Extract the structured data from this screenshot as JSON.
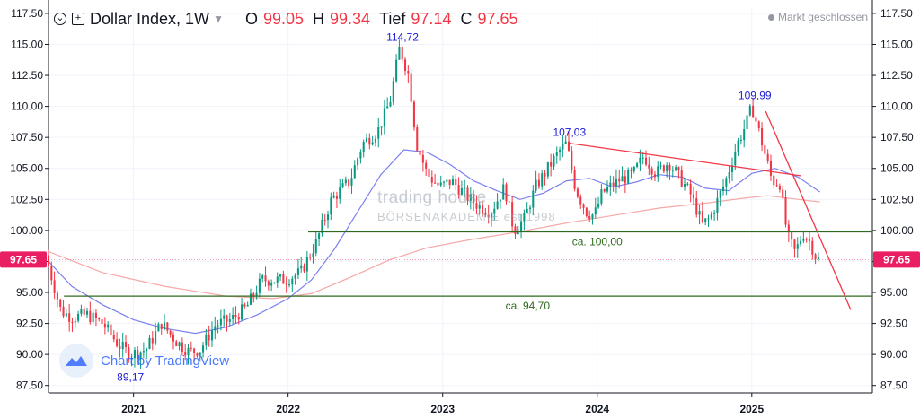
{
  "header": {
    "title": "Dollar Index, 1W",
    "open_key": "O",
    "open": "99.05",
    "high_key": "H",
    "high": "99.34",
    "low_key": "Tief",
    "low": "97.14",
    "close_key": "C",
    "close": "97.65",
    "status": "Markt geschlossen"
  },
  "watermark": {
    "text": "Chart by TradingView",
    "brand_line1": "trading house",
    "brand_line2": "BÖRSENAKADEMIE est 1998"
  },
  "chart_data": {
    "type": "candlestick",
    "ylim": [
      86.9,
      118.0
    ],
    "yticks": [
      87.5,
      90.0,
      92.5,
      95.0,
      97.5,
      100.0,
      102.5,
      105.0,
      107.5,
      110.0,
      112.5,
      115.0,
      117.5
    ],
    "ytick_labels": [
      "87.50",
      "90.00",
      "92.50",
      "95.00",
      "97.50",
      "100.00",
      "102.50",
      "105.00",
      "107.50",
      "110.00",
      "112.50",
      "115.00",
      "117.50"
    ],
    "xlim": [
      2020.45,
      2025.78
    ],
    "xticks": [
      2021,
      2022,
      2023,
      2024,
      2025
    ],
    "xtick_labels": [
      "2021",
      "2022",
      "2023",
      "2024",
      "2025"
    ],
    "last_price": 97.65,
    "last_price_label": "97.65",
    "colors": {
      "up": "#089981",
      "down": "#f23645",
      "ma_short": "#7b7ff0",
      "ma_long": "#f7a8a8",
      "horizontal": "#2e6b1e",
      "trendline": "#f23645",
      "annotation": "#1a1ad6",
      "price_tag": "#e91e63"
    },
    "price_path": [
      [
        2020.45,
        98.0
      ],
      [
        2020.55,
        93.5
      ],
      [
        2020.62,
        93.0
      ],
      [
        2020.72,
        93.2
      ],
      [
        2020.82,
        92.5
      ],
      [
        2020.92,
        90.8
      ],
      [
        2021.0,
        90.0
      ],
      [
        2021.1,
        90.4
      ],
      [
        2021.2,
        92.5
      ],
      [
        2021.3,
        91.0
      ],
      [
        2021.38,
        90.2
      ],
      [
        2021.45,
        90.4
      ],
      [
        2021.55,
        92.4
      ],
      [
        2021.65,
        92.8
      ],
      [
        2021.75,
        93.8
      ],
      [
        2021.85,
        96.0
      ],
      [
        2022.0,
        96.0
      ],
      [
        2022.1,
        96.6
      ],
      [
        2022.2,
        99.0
      ],
      [
        2022.3,
        102.5
      ],
      [
        2022.42,
        104.0
      ],
      [
        2022.5,
        107.0
      ],
      [
        2022.6,
        108.0
      ],
      [
        2022.68,
        110.5
      ],
      [
        2022.74,
        114.72
      ],
      [
        2022.8,
        112.5
      ],
      [
        2022.85,
        107.0
      ],
      [
        2022.92,
        104.5
      ],
      [
        2023.0,
        103.5
      ],
      [
        2023.08,
        104.0
      ],
      [
        2023.17,
        102.8
      ],
      [
        2023.25,
        102.0
      ],
      [
        2023.33,
        101.5
      ],
      [
        2023.42,
        103.5
      ],
      [
        2023.48,
        100.0
      ],
      [
        2023.55,
        101.0
      ],
      [
        2023.62,
        103.5
      ],
      [
        2023.7,
        105.0
      ],
      [
        2023.78,
        106.5
      ],
      [
        2023.82,
        107.03
      ],
      [
        2023.88,
        103.3
      ],
      [
        2023.95,
        101.5
      ],
      [
        2024.0,
        101.2
      ],
      [
        2024.05,
        103.0
      ],
      [
        2024.15,
        104.0
      ],
      [
        2024.25,
        104.5
      ],
      [
        2024.32,
        106.0
      ],
      [
        2024.4,
        104.6
      ],
      [
        2024.48,
        105.5
      ],
      [
        2024.55,
        104.3
      ],
      [
        2024.62,
        103.0
      ],
      [
        2024.7,
        100.5
      ],
      [
        2024.75,
        101.0
      ],
      [
        2024.85,
        104.0
      ],
      [
        2024.92,
        106.8
      ],
      [
        2024.98,
        108.5
      ],
      [
        2025.02,
        109.99
      ],
      [
        2025.08,
        107.3
      ],
      [
        2025.15,
        104.0
      ],
      [
        2025.2,
        103.8
      ],
      [
        2025.25,
        99.5
      ],
      [
        2025.3,
        98.2
      ],
      [
        2025.35,
        99.8
      ],
      [
        2025.4,
        99.0
      ],
      [
        2025.44,
        97.65
      ]
    ],
    "ma_short": [
      [
        2020.45,
        97.5
      ],
      [
        2020.6,
        95.5
      ],
      [
        2020.8,
        94.0
      ],
      [
        2021.0,
        92.8
      ],
      [
        2021.2,
        92.1
      ],
      [
        2021.4,
        91.7
      ],
      [
        2021.6,
        92.2
      ],
      [
        2021.8,
        93.2
      ],
      [
        2022.0,
        94.5
      ],
      [
        2022.15,
        96.0
      ],
      [
        2022.3,
        98.5
      ],
      [
        2022.45,
        101.5
      ],
      [
        2022.6,
        104.5
      ],
      [
        2022.75,
        106.5
      ],
      [
        2022.9,
        106.3
      ],
      [
        2023.05,
        105.3
      ],
      [
        2023.2,
        104.0
      ],
      [
        2023.35,
        103.2
      ],
      [
        2023.5,
        102.5
      ],
      [
        2023.65,
        103.0
      ],
      [
        2023.8,
        104.0
      ],
      [
        2023.95,
        104.2
      ],
      [
        2024.1,
        103.5
      ],
      [
        2024.25,
        103.9
      ],
      [
        2024.4,
        104.5
      ],
      [
        2024.55,
        104.3
      ],
      [
        2024.7,
        103.4
      ],
      [
        2024.85,
        103.2
      ],
      [
        2025.0,
        104.6
      ],
      [
        2025.15,
        105.0
      ],
      [
        2025.3,
        104.3
      ],
      [
        2025.44,
        103.1
      ]
    ],
    "ma_long": [
      [
        2020.45,
        98.3
      ],
      [
        2020.8,
        96.6
      ],
      [
        2021.2,
        95.5
      ],
      [
        2021.6,
        94.7
      ],
      [
        2021.9,
        94.5
      ],
      [
        2022.15,
        94.9
      ],
      [
        2022.4,
        96.2
      ],
      [
        2022.65,
        97.6
      ],
      [
        2022.9,
        98.6
      ],
      [
        2023.2,
        99.3
      ],
      [
        2023.5,
        99.9
      ],
      [
        2023.8,
        100.6
      ],
      [
        2024.1,
        101.2
      ],
      [
        2024.4,
        101.8
      ],
      [
        2024.7,
        102.2
      ],
      [
        2024.95,
        102.6
      ],
      [
        2025.1,
        102.8
      ],
      [
        2025.44,
        102.3
      ]
    ],
    "horizontal_levels": [
      {
        "value": 99.88,
        "x_start": 2022.13,
        "label": "ca. 100,00",
        "label_x": 2024.0
      },
      {
        "value": 94.7,
        "x_start": 2020.55,
        "label": "ca. 94,70",
        "label_x": 2023.55
      }
    ],
    "trendlines": [
      {
        "from": [
          2023.82,
          107.03
        ],
        "to": [
          2025.32,
          104.4
        ]
      },
      {
        "from": [
          2025.09,
          109.6
        ],
        "to": [
          2025.64,
          93.6
        ]
      }
    ],
    "annotations": [
      {
        "x": 2022.74,
        "y": 114.72,
        "text": "114,72",
        "pos": "above"
      },
      {
        "x": 2023.82,
        "y": 107.03,
        "text": "107,03",
        "pos": "above"
      },
      {
        "x": 2025.02,
        "y": 109.99,
        "text": "109,99",
        "pos": "above"
      },
      {
        "x": 2020.98,
        "y": 89.17,
        "text": "89,17",
        "pos": "below"
      }
    ]
  }
}
